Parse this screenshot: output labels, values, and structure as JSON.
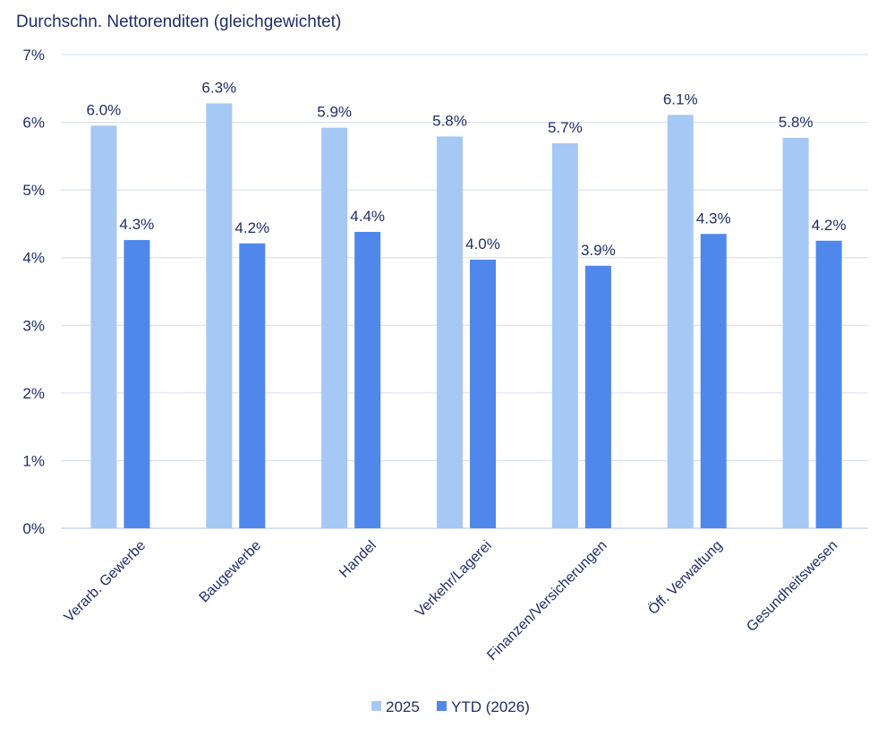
{
  "chart_data": {
    "type": "bar",
    "title": "Durchschn. Nettorenditen (gleichgewichtet)",
    "xlabel": "",
    "ylabel": "",
    "ylim": [
      0,
      7
    ],
    "y_ticks": [
      "0%",
      "1%",
      "2%",
      "3%",
      "4%",
      "5%",
      "6%",
      "7%"
    ],
    "grid": true,
    "legend_position": "bottom",
    "categories": [
      "Verarb. Gewerbe",
      "Baugewerbe",
      "Handel",
      "Verkehr/Lagerei",
      "Finanzen/Versicherungen",
      "Öff. Verwaltung",
      "Gesundheitswesen"
    ],
    "series": [
      {
        "name": "2025",
        "color": "#a6c8f5",
        "values": [
          5.95,
          6.28,
          5.92,
          5.79,
          5.69,
          6.11,
          5.77
        ],
        "labels": [
          "6.0%",
          "6.3%",
          "5.9%",
          "5.8%",
          "5.7%",
          "6.1%",
          "5.8%"
        ]
      },
      {
        "name": "YTD (2026)",
        "color": "#5087eb",
        "values": [
          4.26,
          4.21,
          4.38,
          3.97,
          3.88,
          4.35,
          4.25
        ],
        "labels": [
          "4.3%",
          "4.2%",
          "4.4%",
          "4.0%",
          "3.9%",
          "4.3%",
          "4.2%"
        ]
      }
    ]
  }
}
